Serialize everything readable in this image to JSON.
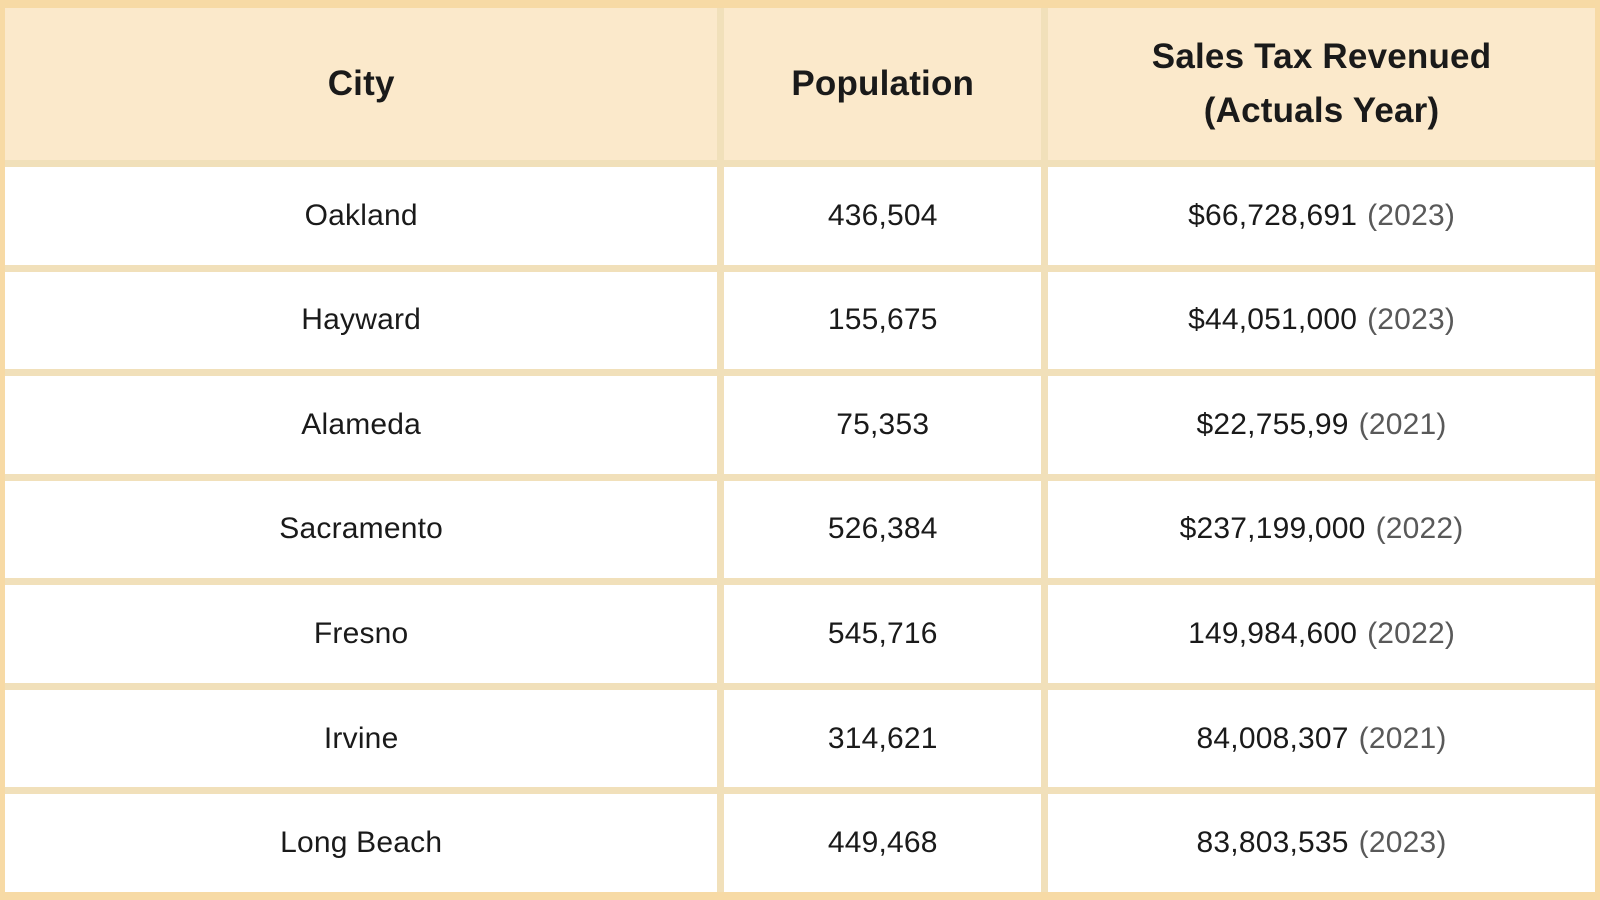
{
  "colors": {
    "header_bg": "#fbe9cb",
    "row_bg": "#ffffff",
    "outer_border": "#f7daa5",
    "grid_line": "#f1e0ba",
    "text_color": "#1a1a1a",
    "year_color": "#595959"
  },
  "table": {
    "header": {
      "city": "City",
      "population": "Population",
      "revenue_line1": "Sales Tax Revenued",
      "revenue_line2": "(Actuals Year)"
    },
    "rows": [
      {
        "city": "Oakland",
        "population": "436,504",
        "revenue": "$66,728,691",
        "year": "(2023)"
      },
      {
        "city": "Hayward",
        "population": "155,675",
        "revenue": "$44,051,000",
        "year": "(2023)"
      },
      {
        "city": "Alameda",
        "population": "75,353",
        "revenue": "$22,755,99",
        "year": "(2021)"
      },
      {
        "city": "Sacramento",
        "population": "526,384",
        "revenue": "$237,199,000",
        "year": "(2022)"
      },
      {
        "city": "Fresno",
        "population": "545,716",
        "revenue": "149,984,600",
        "year": "(2022)"
      },
      {
        "city": "Irvine",
        "population": "314,621",
        "revenue": "84,008,307",
        "year": "(2021)"
      },
      {
        "city": "Long Beach",
        "population": "449,468",
        "revenue": "83,803,535",
        "year": "(2023)"
      }
    ]
  },
  "chart_data": {
    "type": "table",
    "columns": [
      "City",
      "Population",
      "Sales Tax Revenued (Actuals Year)"
    ],
    "rows": [
      [
        "Oakland",
        "436,504",
        "$66,728,691 (2023)"
      ],
      [
        "Hayward",
        "155,675",
        "$44,051,000 (2023)"
      ],
      [
        "Alameda",
        "75,353",
        "$22,755,99 (2021)"
      ],
      [
        "Sacramento",
        "526,384",
        "$237,199,000 (2022)"
      ],
      [
        "Fresno",
        "545,716",
        "149,984,600 (2022)"
      ],
      [
        "Irvine",
        "314,621",
        "84,008,307 (2021)"
      ],
      [
        "Long Beach",
        "449,468",
        "83,803,535 (2023)"
      ]
    ]
  }
}
